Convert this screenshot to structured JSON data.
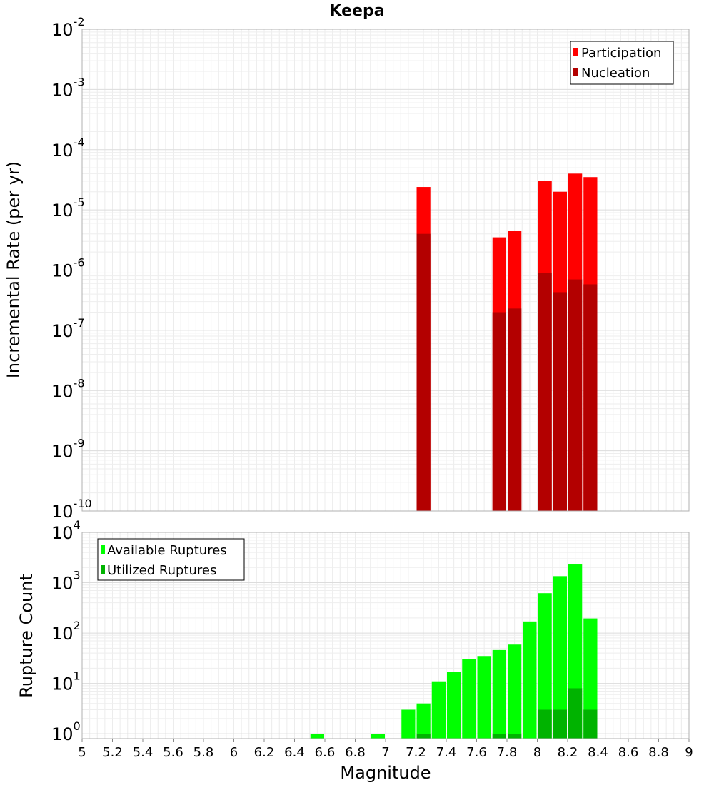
{
  "chart_data": [
    {
      "type": "bar",
      "title": "Keepa",
      "xlabel": "",
      "ylabel": "Incremental Rate (per yr)",
      "yscale": "log",
      "xlim": [
        5,
        9
      ],
      "ylim": [
        1e-10,
        0.01
      ],
      "legend_position": "top-right",
      "grid": true,
      "yticks": [
        {
          "base": "10",
          "exp": "-10",
          "value": 1e-10
        },
        {
          "base": "10",
          "exp": "-9",
          "value": 1e-09
        },
        {
          "base": "10",
          "exp": "-8",
          "value": 1e-08
        },
        {
          "base": "10",
          "exp": "-7",
          "value": 1e-07
        },
        {
          "base": "10",
          "exp": "-6",
          "value": 1e-06
        },
        {
          "base": "10",
          "exp": "-5",
          "value": 1e-05
        },
        {
          "base": "10",
          "exp": "-4",
          "value": 0.0001
        },
        {
          "base": "10",
          "exp": "-3",
          "value": 0.001
        },
        {
          "base": "10",
          "exp": "-2",
          "value": 0.01
        }
      ],
      "series": [
        {
          "name": "Participation",
          "color": "#ff0000",
          "x": [
            7.25,
            7.75,
            7.85,
            8.05,
            8.15,
            8.25,
            8.35
          ],
          "values": [
            2.4e-05,
            3.5e-06,
            4.5e-06,
            3e-05,
            2e-05,
            4e-05,
            3.5e-05
          ]
        },
        {
          "name": "Nucleation",
          "color": "#b30000",
          "x": [
            7.25,
            7.75,
            7.85,
            8.05,
            8.15,
            8.25,
            8.35
          ],
          "values": [
            4e-06,
            2e-07,
            2.3e-07,
            9e-07,
            4.3e-07,
            7e-07,
            5.8e-07
          ]
        }
      ]
    },
    {
      "type": "bar",
      "title": "",
      "xlabel": "Magnitude",
      "ylabel": "Rupture Count",
      "yscale": "log",
      "xlim": [
        5,
        9
      ],
      "ylim": [
        0.8,
        10000
      ],
      "legend_position": "top-left",
      "grid": true,
      "yticks": [
        {
          "base": "10",
          "exp": "0",
          "value": 1
        },
        {
          "base": "10",
          "exp": "1",
          "value": 10
        },
        {
          "base": "10",
          "exp": "2",
          "value": 100
        },
        {
          "base": "10",
          "exp": "3",
          "value": 1000
        },
        {
          "base": "10",
          "exp": "4",
          "value": 10000
        }
      ],
      "xticks": [
        "5",
        "5.2",
        "5.4",
        "5.6",
        "5.8",
        "6",
        "6.2",
        "6.4",
        "6.6",
        "6.8",
        "7",
        "7.2",
        "7.4",
        "7.6",
        "7.8",
        "8",
        "8.2",
        "8.4",
        "8.6",
        "8.8",
        "9"
      ],
      "series": [
        {
          "name": "Available Ruptures",
          "color": "#00ff00",
          "x": [
            6.55,
            6.95,
            7.15,
            7.25,
            7.35,
            7.45,
            7.55,
            7.65,
            7.75,
            7.85,
            7.95,
            8.05,
            8.15,
            8.25,
            8.35
          ],
          "values": [
            1,
            1,
            3,
            4,
            11,
            17,
            30,
            35,
            46,
            59,
            170,
            620,
            1350,
            2300,
            195
          ]
        },
        {
          "name": "Utilized Ruptures",
          "color": "#00b300",
          "x": [
            7.25,
            7.75,
            7.85,
            8.05,
            8.15,
            8.25,
            8.35
          ],
          "values": [
            1,
            1,
            1,
            3,
            3,
            8,
            3
          ]
        }
      ]
    }
  ]
}
